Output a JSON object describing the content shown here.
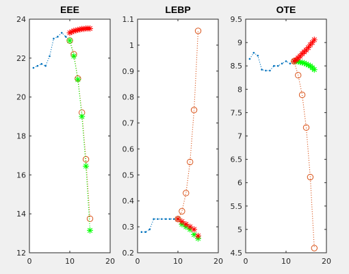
{
  "colors": {
    "figure_bg": "#f0f0f0",
    "axes_bg": "#ffffff",
    "axis": "#262626",
    "history": "#0072bd",
    "orange": "#d95319",
    "red": "#ff0000",
    "green": "#00ff00"
  },
  "chart_data": [
    {
      "type": "line",
      "title": "EEE",
      "xlabel": "",
      "ylabel": "",
      "xlim": [
        0,
        20
      ],
      "ylim": [
        12,
        24
      ],
      "xticks": [
        "0",
        "10",
        "20"
      ],
      "yticks": [
        "12",
        "14",
        "16",
        "18",
        "20",
        "22",
        "24"
      ],
      "grid": false,
      "series": [
        {
          "style": "blue-dotted-points",
          "x": [
            1,
            2,
            3,
            4,
            5,
            6,
            7,
            8,
            9,
            10
          ],
          "y": [
            21.5,
            21.6,
            21.7,
            21.6,
            22.1,
            23.0,
            23.1,
            23.3,
            23.1,
            22.9
          ]
        },
        {
          "style": "orange-dotted-circles",
          "x": [
            10,
            11,
            12,
            13,
            14,
            15
          ],
          "y": [
            22.9,
            22.2,
            20.95,
            19.2,
            16.8,
            13.75
          ]
        },
        {
          "style": "green-dotted-asterisks",
          "x": [
            10,
            11,
            12,
            13,
            14,
            15
          ],
          "y": [
            22.9,
            22.1,
            20.9,
            19.0,
            16.45,
            13.15
          ]
        },
        {
          "style": "red-asterisks",
          "x": [
            10,
            10.5,
            11,
            11.5,
            12,
            12.5,
            13,
            13.5,
            14,
            14.5,
            15
          ],
          "y": [
            23.3,
            23.35,
            23.4,
            23.42,
            23.45,
            23.47,
            23.5,
            23.5,
            23.52,
            23.52,
            23.52
          ]
        }
      ]
    },
    {
      "type": "line",
      "title": "LEBP",
      "xlabel": "",
      "ylabel": "",
      "xlim": [
        0,
        20
      ],
      "ylim": [
        0.2,
        1.1
      ],
      "xticks": [
        "0",
        "10",
        "20"
      ],
      "yticks": [
        "0.2",
        "0.3",
        "0.4",
        "0.5",
        "0.6",
        "0.7",
        "0.8",
        "0.9",
        "1",
        "1.1"
      ],
      "grid": false,
      "series": [
        {
          "style": "blue-dotted-points",
          "x": [
            1,
            2,
            3,
            4,
            5,
            6,
            7,
            8,
            9,
            10
          ],
          "y": [
            0.28,
            0.28,
            0.29,
            0.33,
            0.33,
            0.33,
            0.33,
            0.33,
            0.33,
            0.33
          ]
        },
        {
          "style": "orange-dotted-circles",
          "x": [
            10,
            11,
            12,
            13,
            14,
            15
          ],
          "y": [
            0.33,
            0.36,
            0.43,
            0.55,
            0.75,
            1.055
          ]
        },
        {
          "style": "green-dotted-asterisks",
          "x": [
            10,
            11,
            12,
            13,
            14,
            15
          ],
          "y": [
            0.33,
            0.31,
            0.3,
            0.29,
            0.27,
            0.255
          ]
        },
        {
          "style": "red-asterisks",
          "x": [
            10,
            11,
            12,
            13,
            14,
            15
          ],
          "y": [
            0.33,
            0.32,
            0.31,
            0.3,
            0.29,
            0.265
          ]
        }
      ]
    },
    {
      "type": "line",
      "title": "OTE",
      "xlabel": "",
      "ylabel": "",
      "xlim": [
        0,
        20
      ],
      "ylim": [
        4.5,
        9.5
      ],
      "xticks": [
        "0",
        "10",
        "20"
      ],
      "yticks": [
        "4.5",
        "5",
        "5.5",
        "6",
        "6.5",
        "7",
        "7.5",
        "8",
        "8.5",
        "9",
        "9.5"
      ],
      "grid": false,
      "series": [
        {
          "style": "blue-dotted-points",
          "x": [
            1,
            2,
            3,
            4,
            5,
            6,
            7,
            8,
            9,
            10,
            11,
            12
          ],
          "y": [
            8.65,
            8.78,
            8.72,
            8.42,
            8.4,
            8.4,
            8.5,
            8.5,
            8.55,
            8.6,
            8.55,
            8.6
          ]
        },
        {
          "style": "orange-dotted-circles",
          "x": [
            12,
            13,
            14,
            15,
            16,
            17
          ],
          "y": [
            8.6,
            8.3,
            7.88,
            7.18,
            6.12,
            4.6
          ]
        },
        {
          "style": "green-dotted-asterisks",
          "x": [
            12,
            12.5,
            13,
            13.5,
            14,
            14.5,
            15,
            15.5,
            16,
            16.5,
            17
          ],
          "y": [
            8.6,
            8.6,
            8.59,
            8.58,
            8.57,
            8.56,
            8.54,
            8.52,
            8.5,
            8.46,
            8.42
          ]
        },
        {
          "style": "red-asterisks",
          "x": [
            12,
            12.5,
            13,
            13.5,
            14,
            14.5,
            15,
            15.5,
            16,
            16.5,
            17
          ],
          "y": [
            8.6,
            8.63,
            8.67,
            8.71,
            8.76,
            8.8,
            8.84,
            8.89,
            8.95,
            9.0,
            9.06
          ]
        }
      ]
    }
  ]
}
